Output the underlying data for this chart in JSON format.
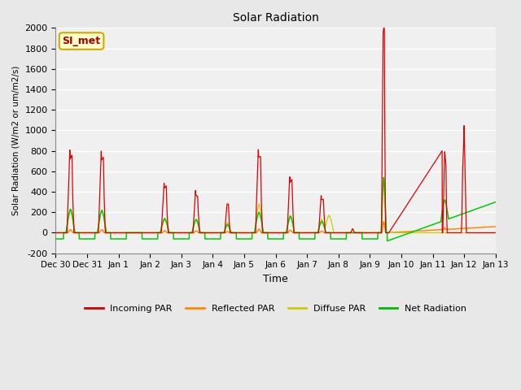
{
  "title": "Solar Radiation",
  "xlabel": "Time",
  "ylabel": "Solar Radiation (W/m2 or um/m2/s)",
  "ylim": [
    -200,
    2000
  ],
  "yticks": [
    -200,
    0,
    200,
    400,
    600,
    800,
    1000,
    1200,
    1400,
    1600,
    1800,
    2000
  ],
  "x_tick_labels": [
    "Dec 30",
    "Dec 31",
    "Jan 1",
    "Jan 2",
    "Jan 3",
    "Jan 4",
    "Jan 5",
    "Jan 6",
    "Jan 7",
    "Jan 8",
    "Jan 9",
    "Jan 10",
    "Jan 11",
    "Jan 12",
    "Jan 13"
  ],
  "legend_labels": [
    "Incoming PAR",
    "Reflected PAR",
    "Diffuse PAR",
    "Net Radiation"
  ],
  "legend_colors": [
    "#cc0000",
    "#ff8800",
    "#cccc00",
    "#00bb00"
  ],
  "annotation_text": "SI_met",
  "annotation_color": "#aa0000",
  "annotation_bg": "#ffffcc",
  "bg_color": "#e8e8e8",
  "plot_bg": "#f0f0f0",
  "grid_color": "#ffffff",
  "line_colors": {
    "incoming": "#dd0000",
    "reflected": "#ff8800",
    "diffuse": "#cccc00",
    "net": "#00cc00"
  }
}
